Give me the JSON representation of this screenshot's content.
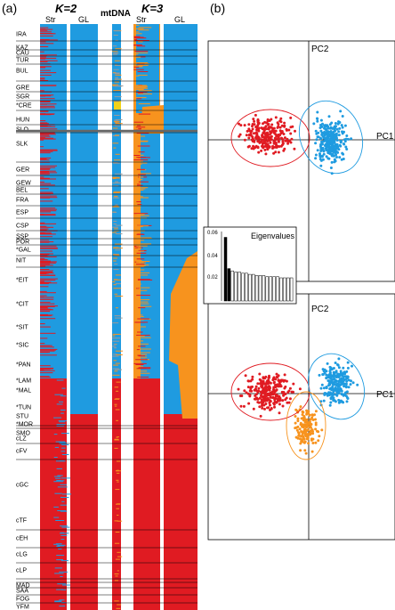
{
  "panel_a": {
    "label": "(a)",
    "k2_title": "K=2",
    "k3_title": "K=3",
    "mtdna_title": "mtDNA",
    "col_str": "Str",
    "col_gl": "GL",
    "populations": [
      "IRA",
      "KAZ",
      "CAU",
      "TUR",
      "BUL",
      "GRE",
      "SGR",
      "*CRE",
      "HUN",
      "SLO",
      "SLK",
      "GER",
      "GEW",
      "BEL",
      "FRA",
      "ESP",
      "CSP",
      "SSP",
      "POR",
      "*GAL",
      "NIT",
      "*EIT",
      "*CIT",
      "*SIT",
      "*SIC",
      "*PAN",
      "*LAM",
      "*MAL",
      "*TUN",
      "STU",
      "*MOR",
      "SMO",
      "cLZ",
      "cFV",
      "cGC",
      "cTF",
      "cEH",
      "cLG",
      "cLP",
      "MAD",
      "SAA",
      "FOG",
      "YFM"
    ],
    "colors": {
      "blue": "#1f9be0",
      "red": "#e01b22",
      "orange": "#f7931e",
      "yellow": "#f2d21a",
      "gray": "#9a9a9a"
    }
  },
  "panel_b": {
    "label": "(b)",
    "pc1_label": "PC1",
    "pc2_label": "PC2",
    "eigen_label": "Eigenvalues",
    "eigen_ticks": [
      "0.06",
      "0.04",
      "0.02"
    ],
    "eigenvalues": [
      0.055,
      0.028,
      0.026,
      0.025,
      0.025,
      0.024,
      0.024,
      0.023,
      0.023,
      0.022,
      0.022,
      0.022,
      0.021,
      0.021,
      0.021,
      0.021,
      0.02,
      0.02,
      0.02,
      0.02
    ]
  }
}
